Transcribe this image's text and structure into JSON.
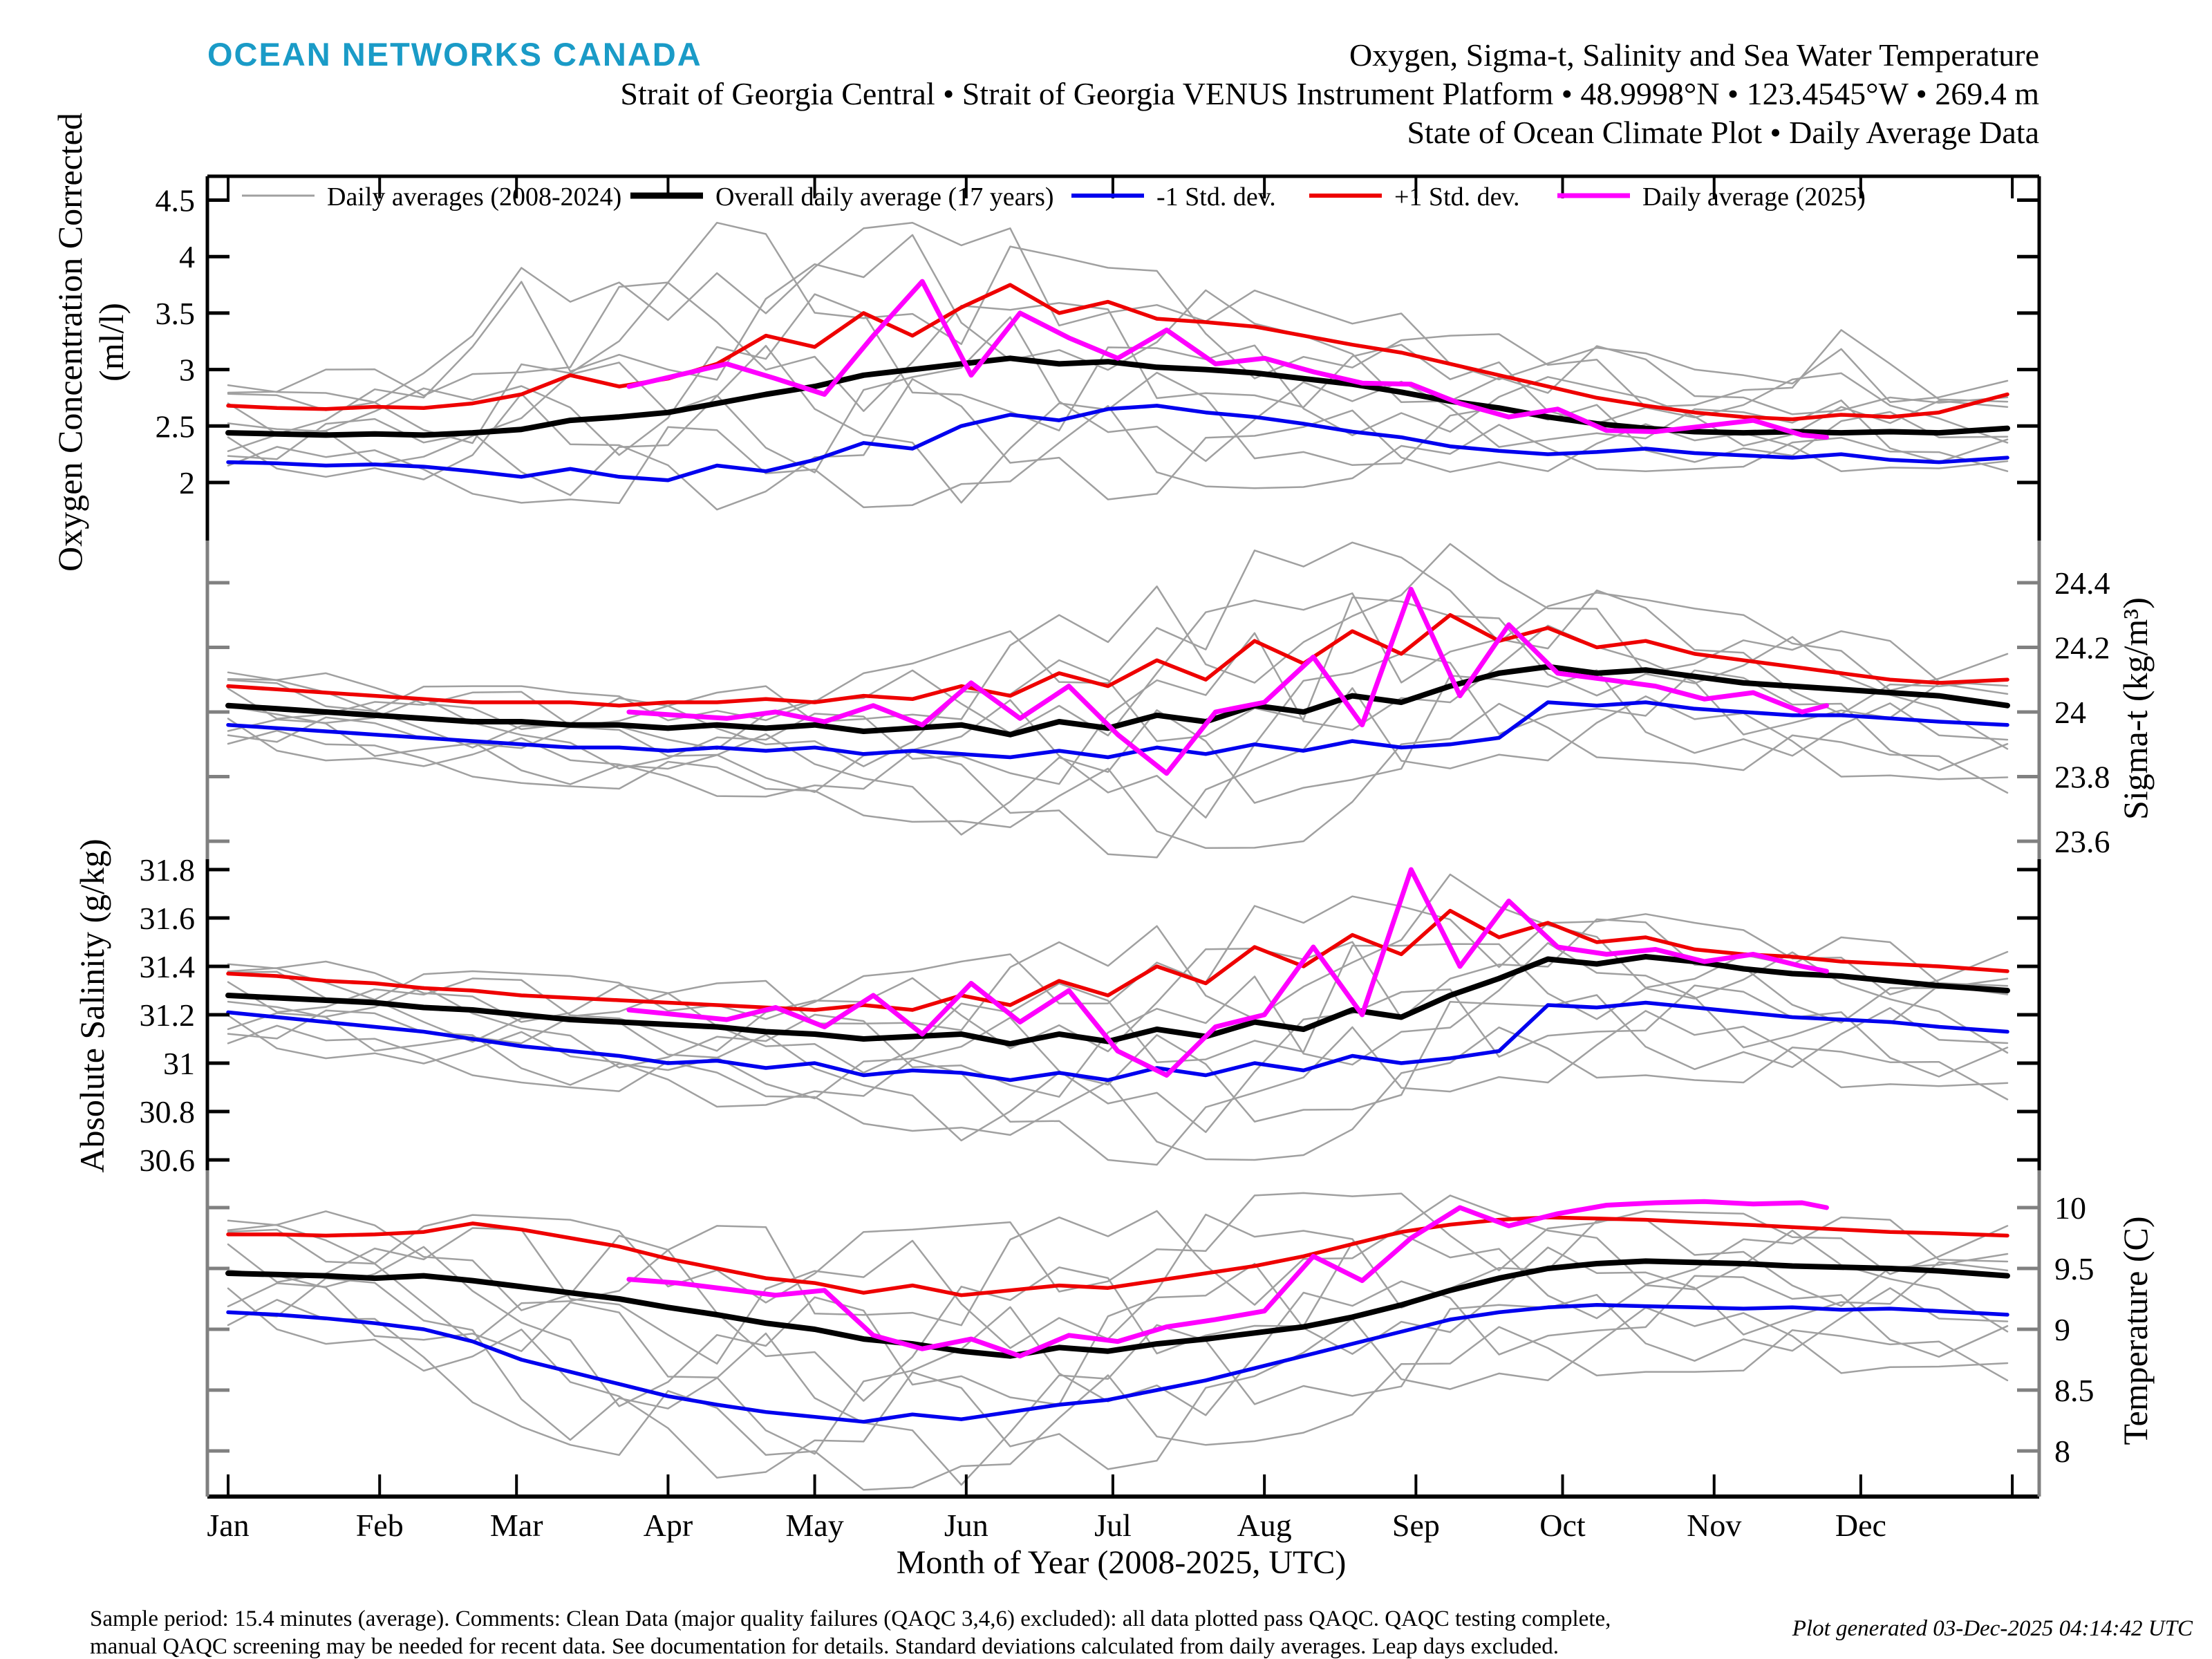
{
  "header": {
    "logo": "OCEAN NETWORKS CANADA",
    "title_line1": "Oxygen, Sigma-t, Salinity and Sea Water Temperature",
    "title_line2": "Strait of Georgia Central • Strait of Georgia VENUS Instrument Platform • 48.9998°N • 123.4545°W • 269.4 m",
    "title_line3": "State of Ocean Climate Plot • Daily Average Data"
  },
  "legend": {
    "items": [
      {
        "label": "Daily averages (2008-2024)",
        "color": "#a0a0a0",
        "width": 3
      },
      {
        "label": "Overall daily average (17 years)",
        "color": "#000000",
        "width": 9
      },
      {
        "label": "-1 Std. dev.",
        "color": "#0000ee",
        "width": 6
      },
      {
        "label": "+1 Std. dev.",
        "color": "#ee0000",
        "width": 6
      },
      {
        "label": "Daily average (2025)",
        "color": "#ff00ff",
        "width": 7
      }
    ]
  },
  "x_axis": {
    "label": "Month of Year (2008-2025, UTC)",
    "months": [
      "Jan",
      "Feb",
      "Mar",
      "Apr",
      "May",
      "Jun",
      "Jul",
      "Aug",
      "Sep",
      "Oct",
      "Nov",
      "Dec"
    ],
    "month_start_days": [
      0,
      31,
      59,
      90,
      120,
      151,
      181,
      212,
      243,
      273,
      304,
      334,
      365
    ]
  },
  "footer": {
    "line1": "Sample period: 15.4 minutes (average). Comments: Clean Data (major quality failures (QAQC 3,4,6) excluded): all data plotted pass QAQC. QAQC testing complete,",
    "line2": "manual QAQC screening may be needed for recent data. See documentation for details. Standard deviations calculated from daily averages. Leap days excluded.",
    "generated": "Plot generated 03-Dec-2025 04:14:42 UTC"
  },
  "colors": {
    "mean": "#000000",
    "plus1_std": "#ee0000",
    "minus1_std": "#0000ee",
    "daily_2025": "#ff00ff",
    "gray_ensemble": "#a0a0a0",
    "axis_gray": "#808080",
    "logo_teal": "#1a9bc7"
  },
  "chart_data": {
    "type": "line",
    "x_days": [
      0,
      10,
      20,
      30,
      40,
      50,
      60,
      70,
      80,
      90,
      100,
      110,
      120,
      130,
      140,
      150,
      160,
      170,
      180,
      190,
      200,
      210,
      220,
      230,
      240,
      250,
      260,
      270,
      280,
      290,
      300,
      310,
      320,
      330,
      340,
      350,
      364
    ],
    "x_days_2025": [
      82,
      92,
      102,
      112,
      122,
      132,
      142,
      152,
      162,
      172,
      182,
      192,
      202,
      212,
      222,
      232,
      242,
      252,
      262,
      272,
      282,
      292,
      302,
      312,
      322,
      327
    ],
    "panels": [
      {
        "id": "oxygen",
        "ylabel": "Oxygen Concentration Corrected",
        "ylabel2": "(ml/l)",
        "label_side": "left",
        "ticks": [
          2,
          2.5,
          3,
          3.5,
          4,
          4.5
        ],
        "tick_labels": [
          "2",
          "2.5",
          "3",
          "3.5",
          "4",
          "4.5"
        ],
        "overall_mean": [
          2.44,
          2.43,
          2.42,
          2.43,
          2.42,
          2.44,
          2.47,
          2.55,
          2.58,
          2.62,
          2.7,
          2.78,
          2.85,
          2.95,
          3.0,
          3.05,
          3.1,
          3.05,
          3.07,
          3.02,
          3.0,
          2.97,
          2.92,
          2.87,
          2.8,
          2.72,
          2.66,
          2.58,
          2.52,
          2.48,
          2.45,
          2.44,
          2.45,
          2.44,
          2.45,
          2.44,
          2.48
        ],
        "plus1_std": [
          2.68,
          2.66,
          2.65,
          2.67,
          2.66,
          2.7,
          2.78,
          2.95,
          2.85,
          2.92,
          3.05,
          3.3,
          3.2,
          3.5,
          3.3,
          3.55,
          3.75,
          3.5,
          3.6,
          3.45,
          3.42,
          3.38,
          3.3,
          3.22,
          3.15,
          3.05,
          2.95,
          2.85,
          2.75,
          2.68,
          2.62,
          2.58,
          2.56,
          2.6,
          2.58,
          2.62,
          2.78
        ],
        "minus1_std": [
          2.18,
          2.17,
          2.15,
          2.16,
          2.14,
          2.1,
          2.05,
          2.12,
          2.05,
          2.02,
          2.15,
          2.1,
          2.2,
          2.35,
          2.3,
          2.5,
          2.6,
          2.55,
          2.65,
          2.68,
          2.62,
          2.58,
          2.52,
          2.45,
          2.4,
          2.32,
          2.28,
          2.25,
          2.27,
          2.3,
          2.26,
          2.24,
          2.22,
          2.25,
          2.2,
          2.18,
          2.22
        ],
        "daily_2025": [
          2.85,
          2.95,
          3.05,
          2.92,
          2.78,
          3.3,
          3.78,
          2.95,
          3.5,
          3.28,
          3.1,
          3.35,
          3.05,
          3.1,
          2.98,
          2.88,
          2.87,
          2.7,
          2.58,
          2.65,
          2.46,
          2.45,
          2.5,
          2.55,
          2.42,
          2.4
        ],
        "gray_min": [
          2.08,
          2.06,
          2.05,
          2.02,
          1.98,
          1.9,
          1.82,
          1.85,
          1.8,
          1.78,
          1.76,
          1.8,
          1.75,
          1.78,
          1.8,
          1.82,
          1.85,
          1.88,
          1.85,
          1.9,
          1.92,
          1.95,
          1.96,
          2.0,
          2.02,
          2.05,
          2.08,
          2.1,
          2.12,
          2.1,
          2.12,
          2.14,
          2.12,
          2.1,
          2.08,
          2.06,
          2.1
        ],
        "gray_max": [
          2.95,
          2.9,
          3.0,
          3.1,
          3.05,
          3.3,
          3.9,
          3.6,
          3.85,
          4.0,
          4.3,
          4.2,
          4.35,
          4.25,
          4.3,
          4.1,
          4.25,
          4.0,
          4.1,
          3.9,
          3.8,
          3.7,
          3.55,
          3.45,
          3.5,
          3.3,
          3.4,
          3.2,
          3.3,
          3.15,
          3.0,
          2.95,
          3.0,
          3.35,
          3.05,
          2.95,
          2.9
        ]
      },
      {
        "id": "sigma_t",
        "ylabel": "Sigma-t (kg/m³)",
        "ylabel2": "",
        "label_side": "right",
        "ticks": [
          23.6,
          23.8,
          24,
          24.2,
          24.4
        ],
        "tick_labels": [
          "23.6",
          "23.8",
          "24",
          "24.2",
          "24.4"
        ],
        "overall_mean": [
          24.02,
          24.01,
          24.0,
          23.99,
          23.98,
          23.97,
          23.97,
          23.96,
          23.96,
          23.95,
          23.96,
          23.95,
          23.96,
          23.94,
          23.95,
          23.96,
          23.93,
          23.97,
          23.95,
          23.99,
          23.97,
          24.02,
          24.0,
          24.05,
          24.03,
          24.08,
          24.12,
          24.14,
          24.12,
          24.13,
          24.11,
          24.09,
          24.08,
          24.07,
          24.06,
          24.05,
          24.02
        ],
        "plus1_std": [
          24.08,
          24.07,
          24.06,
          24.05,
          24.04,
          24.03,
          24.03,
          24.03,
          24.02,
          24.03,
          24.03,
          24.04,
          24.03,
          24.05,
          24.04,
          24.08,
          24.05,
          24.12,
          24.08,
          24.16,
          24.1,
          24.22,
          24.15,
          24.25,
          24.18,
          24.3,
          24.22,
          24.26,
          24.2,
          24.22,
          24.18,
          24.16,
          24.14,
          24.12,
          24.1,
          24.09,
          24.1
        ],
        "minus1_std": [
          23.96,
          23.95,
          23.94,
          23.93,
          23.92,
          23.91,
          23.9,
          23.89,
          23.89,
          23.88,
          23.89,
          23.88,
          23.89,
          23.87,
          23.88,
          23.87,
          23.86,
          23.88,
          23.86,
          23.89,
          23.87,
          23.9,
          23.88,
          23.91,
          23.89,
          23.9,
          23.92,
          24.03,
          24.02,
          24.03,
          24.01,
          24.0,
          23.99,
          23.99,
          23.98,
          23.97,
          23.96
        ],
        "daily_2025": [
          24.0,
          23.99,
          23.98,
          24.0,
          23.97,
          24.02,
          23.96,
          24.09,
          23.98,
          24.08,
          23.93,
          23.81,
          24.0,
          24.03,
          24.17,
          23.96,
          24.38,
          24.05,
          24.27,
          24.12,
          24.1,
          24.08,
          24.04,
          24.06,
          24.0,
          24.02
        ],
        "gray_min": [
          23.88,
          23.86,
          23.85,
          23.83,
          23.82,
          23.8,
          23.78,
          23.77,
          23.76,
          23.75,
          23.74,
          23.72,
          23.7,
          23.68,
          23.66,
          23.62,
          23.6,
          23.58,
          23.56,
          23.55,
          23.56,
          23.58,
          23.6,
          23.7,
          23.75,
          23.8,
          23.82,
          23.85,
          23.86,
          23.85,
          23.84,
          23.82,
          23.8,
          23.8,
          23.78,
          23.76,
          23.75
        ],
        "gray_max": [
          24.15,
          24.13,
          24.12,
          24.1,
          24.1,
          24.08,
          24.08,
          24.06,
          24.06,
          24.05,
          24.06,
          24.08,
          24.1,
          24.12,
          24.15,
          24.2,
          24.25,
          24.3,
          24.28,
          24.4,
          24.35,
          24.5,
          24.45,
          24.55,
          24.48,
          24.52,
          24.45,
          24.4,
          24.42,
          24.35,
          24.32,
          24.3,
          24.28,
          24.25,
          24.22,
          24.2,
          24.18
        ]
      },
      {
        "id": "salinity",
        "ylabel": "Absolute Salinity (g/kg)",
        "ylabel2": "",
        "label_side": "left",
        "ticks": [
          30.6,
          30.8,
          31,
          31.2,
          31.4,
          31.6,
          31.8
        ],
        "tick_labels": [
          "30.6",
          "30.8",
          "31",
          "31.2",
          "31.4",
          "31.6",
          "31.8"
        ],
        "overall_mean": [
          31.28,
          31.27,
          31.26,
          31.25,
          31.23,
          31.22,
          31.2,
          31.18,
          31.17,
          31.16,
          31.15,
          31.13,
          31.12,
          31.1,
          31.11,
          31.12,
          31.08,
          31.12,
          31.09,
          31.14,
          31.11,
          31.17,
          31.14,
          31.22,
          31.19,
          31.28,
          31.35,
          31.43,
          31.41,
          31.44,
          31.42,
          31.39,
          31.37,
          31.36,
          31.34,
          31.32,
          31.3
        ],
        "plus1_std": [
          31.37,
          31.36,
          31.34,
          31.33,
          31.31,
          31.3,
          31.28,
          31.27,
          31.26,
          31.25,
          31.24,
          31.23,
          31.22,
          31.24,
          31.22,
          31.28,
          31.24,
          31.34,
          31.28,
          31.4,
          31.33,
          31.48,
          31.4,
          31.53,
          31.45,
          31.63,
          31.52,
          31.58,
          31.5,
          31.52,
          31.47,
          31.45,
          31.44,
          31.42,
          31.41,
          31.4,
          31.38
        ],
        "minus1_std": [
          31.21,
          31.19,
          31.17,
          31.15,
          31.13,
          31.1,
          31.07,
          31.05,
          31.03,
          31.0,
          31.01,
          30.98,
          31.0,
          30.95,
          30.97,
          30.96,
          30.93,
          30.96,
          30.93,
          30.98,
          30.95,
          31.0,
          30.97,
          31.03,
          31.0,
          31.02,
          31.05,
          31.24,
          31.23,
          31.25,
          31.23,
          31.21,
          31.19,
          31.18,
          31.17,
          31.15,
          31.13
        ],
        "daily_2025": [
          31.22,
          31.2,
          31.18,
          31.23,
          31.15,
          31.28,
          31.12,
          31.33,
          31.17,
          31.3,
          31.05,
          30.95,
          31.15,
          31.2,
          31.48,
          31.2,
          31.8,
          31.4,
          31.67,
          31.48,
          31.45,
          31.47,
          31.42,
          31.45,
          31.4,
          31.38
        ],
        "gray_min": [
          31.05,
          31.03,
          31.02,
          31.0,
          30.98,
          30.95,
          30.92,
          30.9,
          30.88,
          30.85,
          30.82,
          30.8,
          30.78,
          30.75,
          30.72,
          30.68,
          30.65,
          30.62,
          30.6,
          30.58,
          30.58,
          30.6,
          30.62,
          30.7,
          30.78,
          30.85,
          30.88,
          30.92,
          30.94,
          30.95,
          30.93,
          30.92,
          30.9,
          30.9,
          30.88,
          30.86,
          30.85
        ],
        "gray_max": [
          31.45,
          31.44,
          31.42,
          31.41,
          31.4,
          31.38,
          31.37,
          31.36,
          31.35,
          31.34,
          31.33,
          31.34,
          31.35,
          31.36,
          31.38,
          31.42,
          31.45,
          31.5,
          31.48,
          31.58,
          31.52,
          31.65,
          31.58,
          31.72,
          31.65,
          31.78,
          31.7,
          31.68,
          31.65,
          31.62,
          31.58,
          31.55,
          31.52,
          31.52,
          31.5,
          31.48,
          31.46
        ]
      },
      {
        "id": "temperature",
        "ylabel": "Temperature (C)",
        "ylabel2": "",
        "label_side": "right",
        "ticks": [
          8,
          8.5,
          9,
          9.5,
          10
        ],
        "tick_labels": [
          "8",
          "8.5",
          "9",
          "9.5",
          "10"
        ],
        "overall_mean": [
          9.46,
          9.45,
          9.44,
          9.42,
          9.44,
          9.4,
          9.35,
          9.3,
          9.25,
          9.18,
          9.12,
          9.05,
          9.0,
          8.92,
          8.88,
          8.82,
          8.78,
          8.85,
          8.82,
          8.88,
          8.92,
          8.97,
          9.02,
          9.1,
          9.2,
          9.32,
          9.42,
          9.5,
          9.54,
          9.56,
          9.55,
          9.54,
          9.52,
          9.51,
          9.5,
          9.48,
          9.44
        ],
        "plus1_std": [
          9.78,
          9.78,
          9.77,
          9.78,
          9.8,
          9.87,
          9.82,
          9.75,
          9.68,
          9.58,
          9.5,
          9.42,
          9.38,
          9.3,
          9.36,
          9.28,
          9.32,
          9.36,
          9.34,
          9.4,
          9.46,
          9.52,
          9.6,
          9.7,
          9.8,
          9.86,
          9.9,
          9.92,
          9.91,
          9.9,
          9.88,
          9.86,
          9.84,
          9.82,
          9.8,
          9.79,
          9.77
        ],
        "minus1_std": [
          9.14,
          9.12,
          9.09,
          9.05,
          9.0,
          8.9,
          8.75,
          8.65,
          8.55,
          8.45,
          8.38,
          8.32,
          8.28,
          8.24,
          8.3,
          8.26,
          8.32,
          8.38,
          8.42,
          8.5,
          8.58,
          8.68,
          8.78,
          8.88,
          8.98,
          9.08,
          9.14,
          9.18,
          9.2,
          9.19,
          9.18,
          9.17,
          9.18,
          9.16,
          9.17,
          9.15,
          9.12
        ],
        "daily_2025": [
          9.41,
          9.38,
          9.33,
          9.28,
          9.32,
          8.95,
          8.84,
          8.92,
          8.78,
          8.95,
          8.9,
          9.02,
          9.08,
          9.15,
          9.6,
          9.4,
          9.75,
          10.0,
          9.85,
          9.95,
          10.02,
          10.04,
          10.05,
          10.03,
          10.04,
          10.0
        ],
        "gray_min": [
          8.95,
          8.92,
          8.88,
          8.8,
          8.6,
          8.4,
          8.2,
          8.05,
          7.95,
          7.85,
          7.78,
          7.72,
          7.7,
          7.68,
          7.7,
          7.72,
          7.75,
          7.8,
          7.85,
          7.92,
          8.0,
          8.08,
          8.15,
          8.25,
          8.35,
          8.45,
          8.52,
          8.58,
          8.62,
          8.65,
          8.65,
          8.66,
          8.65,
          8.64,
          8.62,
          8.6,
          8.58
        ],
        "gray_max": [
          10.0,
          9.98,
          9.97,
          9.96,
          9.95,
          9.94,
          9.92,
          9.9,
          9.88,
          9.86,
          9.85,
          9.84,
          9.82,
          9.8,
          9.82,
          9.85,
          9.88,
          9.92,
          9.95,
          10.0,
          10.05,
          10.1,
          10.12,
          10.15,
          10.12,
          10.1,
          10.05,
          10.02,
          10.0,
          9.98,
          9.96,
          9.95,
          9.94,
          9.92,
          9.9,
          9.88,
          9.85
        ]
      }
    ]
  }
}
